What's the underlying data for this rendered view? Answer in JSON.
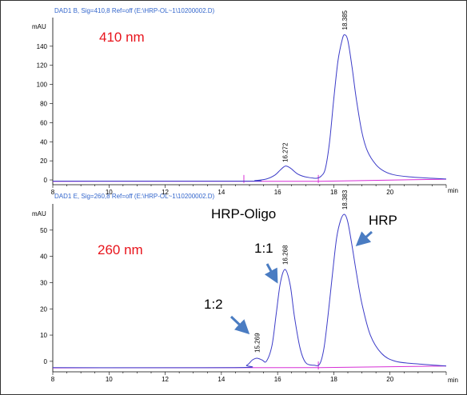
{
  "chart_data": [
    {
      "type": "line",
      "header": "DAD1 B, Sig=410,8 Ref=off (E:\\HRP-OL~1\\10200002.D)",
      "wavelength_label": "410 nm",
      "wavelength_color": "#e8141c",
      "ylabel": "mAU",
      "xlabel": "min",
      "xlim": [
        8,
        22
      ],
      "ylim": [
        -5,
        170
      ],
      "xticks": [
        8,
        10,
        12,
        14,
        16,
        18,
        20
      ],
      "yticks": [
        0,
        20,
        40,
        60,
        80,
        100,
        120,
        140
      ],
      "trace_color": "#3c3cc8",
      "baseline_color": "#d62fd6",
      "peaks": [
        {
          "rt": 16.272,
          "label": "16.272",
          "height": 13.5,
          "sigma": 0.22
        },
        {
          "rt": 18.385,
          "label": "18.385",
          "height": 152,
          "sigma": 0.25,
          "tail": 0.5
        }
      ],
      "trace_points": [
        [
          8,
          -1.2
        ],
        [
          14.8,
          -1.2
        ],
        [
          15.2,
          -0.6
        ],
        [
          15.6,
          1
        ],
        [
          15.9,
          5
        ],
        [
          16.1,
          10.5
        ],
        [
          16.272,
          14.5
        ],
        [
          16.45,
          12.5
        ],
        [
          16.7,
          6.5
        ],
        [
          16.95,
          3.5
        ],
        [
          17.25,
          2
        ],
        [
          17.4,
          1.8
        ],
        [
          17.55,
          4
        ],
        [
          17.7,
          12
        ],
        [
          17.85,
          40
        ],
        [
          18.0,
          85
        ],
        [
          18.15,
          125
        ],
        [
          18.3,
          147
        ],
        [
          18.385,
          152
        ],
        [
          18.5,
          146
        ],
        [
          18.65,
          118
        ],
        [
          18.8,
          85
        ],
        [
          19.0,
          50
        ],
        [
          19.2,
          30
        ],
        [
          19.5,
          16
        ],
        [
          19.8,
          9
        ],
        [
          20.2,
          5
        ],
        [
          21,
          2.5
        ],
        [
          22,
          1
        ]
      ],
      "baseline_points": [
        [
          8,
          -1.5
        ],
        [
          17.5,
          -1.4
        ],
        [
          22,
          0.8
        ]
      ],
      "markers": [
        14.8,
        17.45
      ]
    },
    {
      "type": "line",
      "header": "DAD1 E, Sig=260,8 Ref=off (E:\\HRP-OL~1\\10200002.D)",
      "wavelength_label": "260 nm",
      "wavelength_color": "#e8141c",
      "ylabel": "mAU",
      "xlabel": "min",
      "xlim": [
        8,
        22
      ],
      "ylim": [
        -4,
        60
      ],
      "xticks": [
        8,
        10,
        12,
        14,
        16,
        18,
        20
      ],
      "yticks": [
        0,
        10,
        20,
        30,
        40,
        50
      ],
      "trace_color": "#3c3cc8",
      "baseline_color": "#d62fd6",
      "peaks": [
        {
          "rt": 15.269,
          "label": "15.269",
          "height": 1.5
        },
        {
          "rt": 16.268,
          "label": "16.268",
          "height": 35
        },
        {
          "rt": 18.383,
          "label": "18.383",
          "height": 56
        }
      ],
      "trace_points": [
        [
          8,
          -2.4
        ],
        [
          14.5,
          -2.4
        ],
        [
          14.9,
          -1.5
        ],
        [
          15.1,
          0.5
        ],
        [
          15.269,
          1.2
        ],
        [
          15.45,
          0.5
        ],
        [
          15.6,
          0
        ],
        [
          15.8,
          6
        ],
        [
          15.95,
          18
        ],
        [
          16.1,
          30
        ],
        [
          16.268,
          35
        ],
        [
          16.45,
          29
        ],
        [
          16.6,
          17
        ],
        [
          16.8,
          5
        ],
        [
          17.0,
          -0.5
        ],
        [
          17.3,
          -1.5
        ],
        [
          17.5,
          -1
        ],
        [
          17.65,
          5
        ],
        [
          17.8,
          18
        ],
        [
          17.95,
          33
        ],
        [
          18.1,
          47
        ],
        [
          18.25,
          54
        ],
        [
          18.383,
          56
        ],
        [
          18.5,
          53
        ],
        [
          18.65,
          44
        ],
        [
          18.8,
          34
        ],
        [
          19.0,
          22
        ],
        [
          19.3,
          10
        ],
        [
          19.7,
          3
        ],
        [
          20.2,
          0
        ],
        [
          21,
          -1
        ],
        [
          22,
          -1.8
        ]
      ],
      "baseline_points": [
        [
          8,
          -2.5
        ],
        [
          17.5,
          -2.4
        ],
        [
          22,
          -1.8
        ]
      ],
      "markers": [
        17.45
      ],
      "annotations": [
        {
          "text": "HRP-Oligo",
          "color": "#000000"
        },
        {
          "text": "1:1",
          "color": "#000000"
        },
        {
          "text": "1:2",
          "color": "#000000"
        },
        {
          "text": "HRP",
          "color": "#000000"
        }
      ],
      "arrow_color": "#4a7cc2"
    }
  ]
}
